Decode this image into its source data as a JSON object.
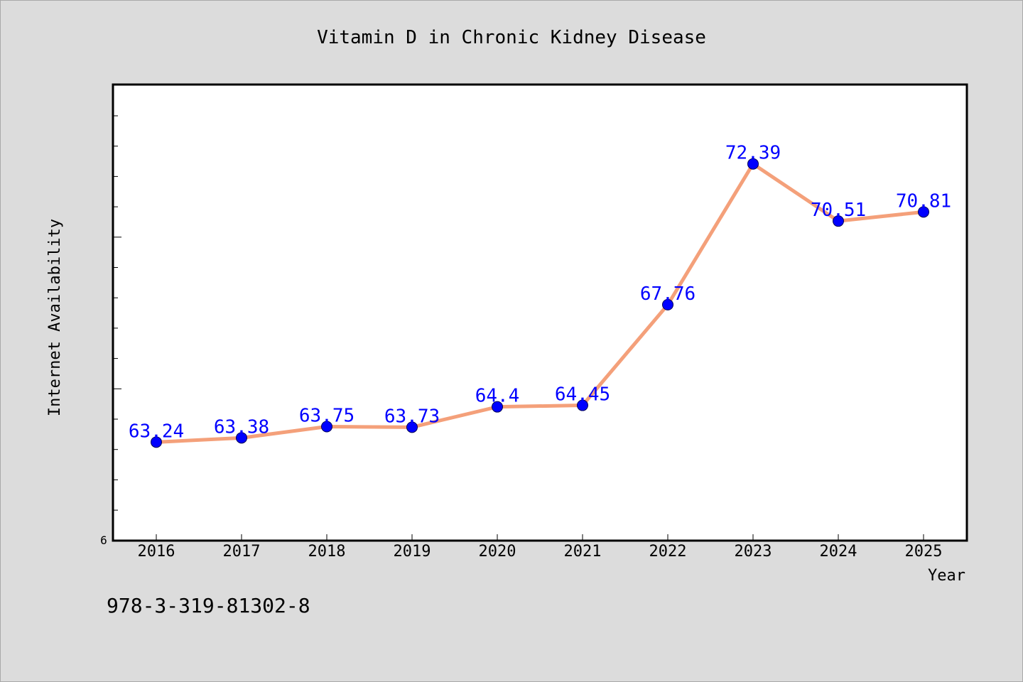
{
  "chart_data": {
    "type": "line",
    "title": "Vitamin D in Chronic Kidney Disease",
    "xlabel": "Year",
    "ylabel": "Internet Availability",
    "categories": [
      "2016",
      "2017",
      "2018",
      "2019",
      "2020",
      "2021",
      "2022",
      "2023",
      "2024",
      "2025"
    ],
    "values": [
      63.24,
      63.38,
      63.75,
      63.73,
      64.4,
      64.45,
      67.76,
      72.39,
      70.51,
      70.81
    ],
    "data_labels": [
      "63.24",
      "63.38",
      "63.75",
      "63.73",
      "64.4",
      "64.45",
      "67.76",
      "72.39",
      "70.51",
      "70.81"
    ],
    "ylim": [
      60.0,
      75.0
    ],
    "y_tick_labels": [
      "6"
    ],
    "grid": false,
    "line_color": "#f4a07a",
    "marker_color": "#0000ff",
    "label_color": "#0000ff"
  },
  "footer_text": "978-3-319-81302-8"
}
